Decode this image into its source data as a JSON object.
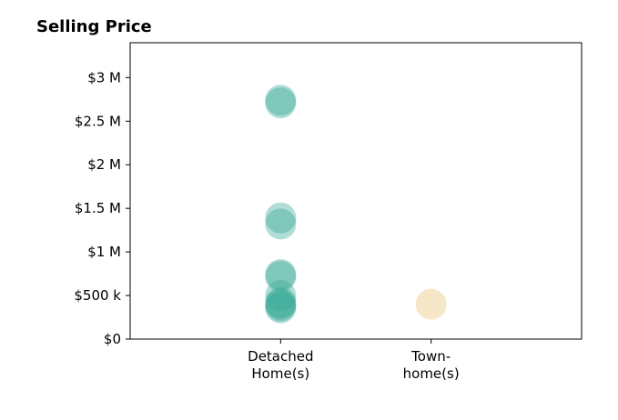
{
  "chart_data": {
    "type": "scatter",
    "title": "Selling Price",
    "categories": [
      [
        "Detached",
        "Home(s)"
      ],
      [
        "Town-",
        "home(s)"
      ]
    ],
    "y_ticks": [
      {
        "value": 0,
        "label": "$0"
      },
      {
        "value": 500000,
        "label": "$500 k"
      },
      {
        "value": 1000000,
        "label": "$1 M"
      },
      {
        "value": 1500000,
        "label": "$1.5 M"
      },
      {
        "value": 2000000,
        "label": "$2 M"
      },
      {
        "value": 2500000,
        "label": "$2.5 M"
      },
      {
        "value": 3000000,
        "label": "$3 M"
      }
    ],
    "ylim": [
      0,
      3400000
    ],
    "xlim": [
      -1,
      2
    ],
    "grid": false,
    "series": [
      {
        "color": "#3aab96",
        "opacity": 0.4,
        "points": [
          {
            "category": 0,
            "y": 2740000
          },
          {
            "category": 0,
            "y": 2710000
          },
          {
            "category": 0,
            "y": 1390000
          },
          {
            "category": 0,
            "y": 1320000
          },
          {
            "category": 0,
            "y": 740000
          },
          {
            "category": 0,
            "y": 720000
          },
          {
            "category": 0,
            "y": 500000
          },
          {
            "category": 0,
            "y": 420000
          },
          {
            "category": 0,
            "y": 400000
          },
          {
            "category": 0,
            "y": 380000
          },
          {
            "category": 0,
            "y": 360000
          }
        ]
      },
      {
        "color": "#f2ddb0",
        "opacity": 0.7,
        "points": [
          {
            "category": 1,
            "y": 400000
          }
        ]
      }
    ]
  }
}
